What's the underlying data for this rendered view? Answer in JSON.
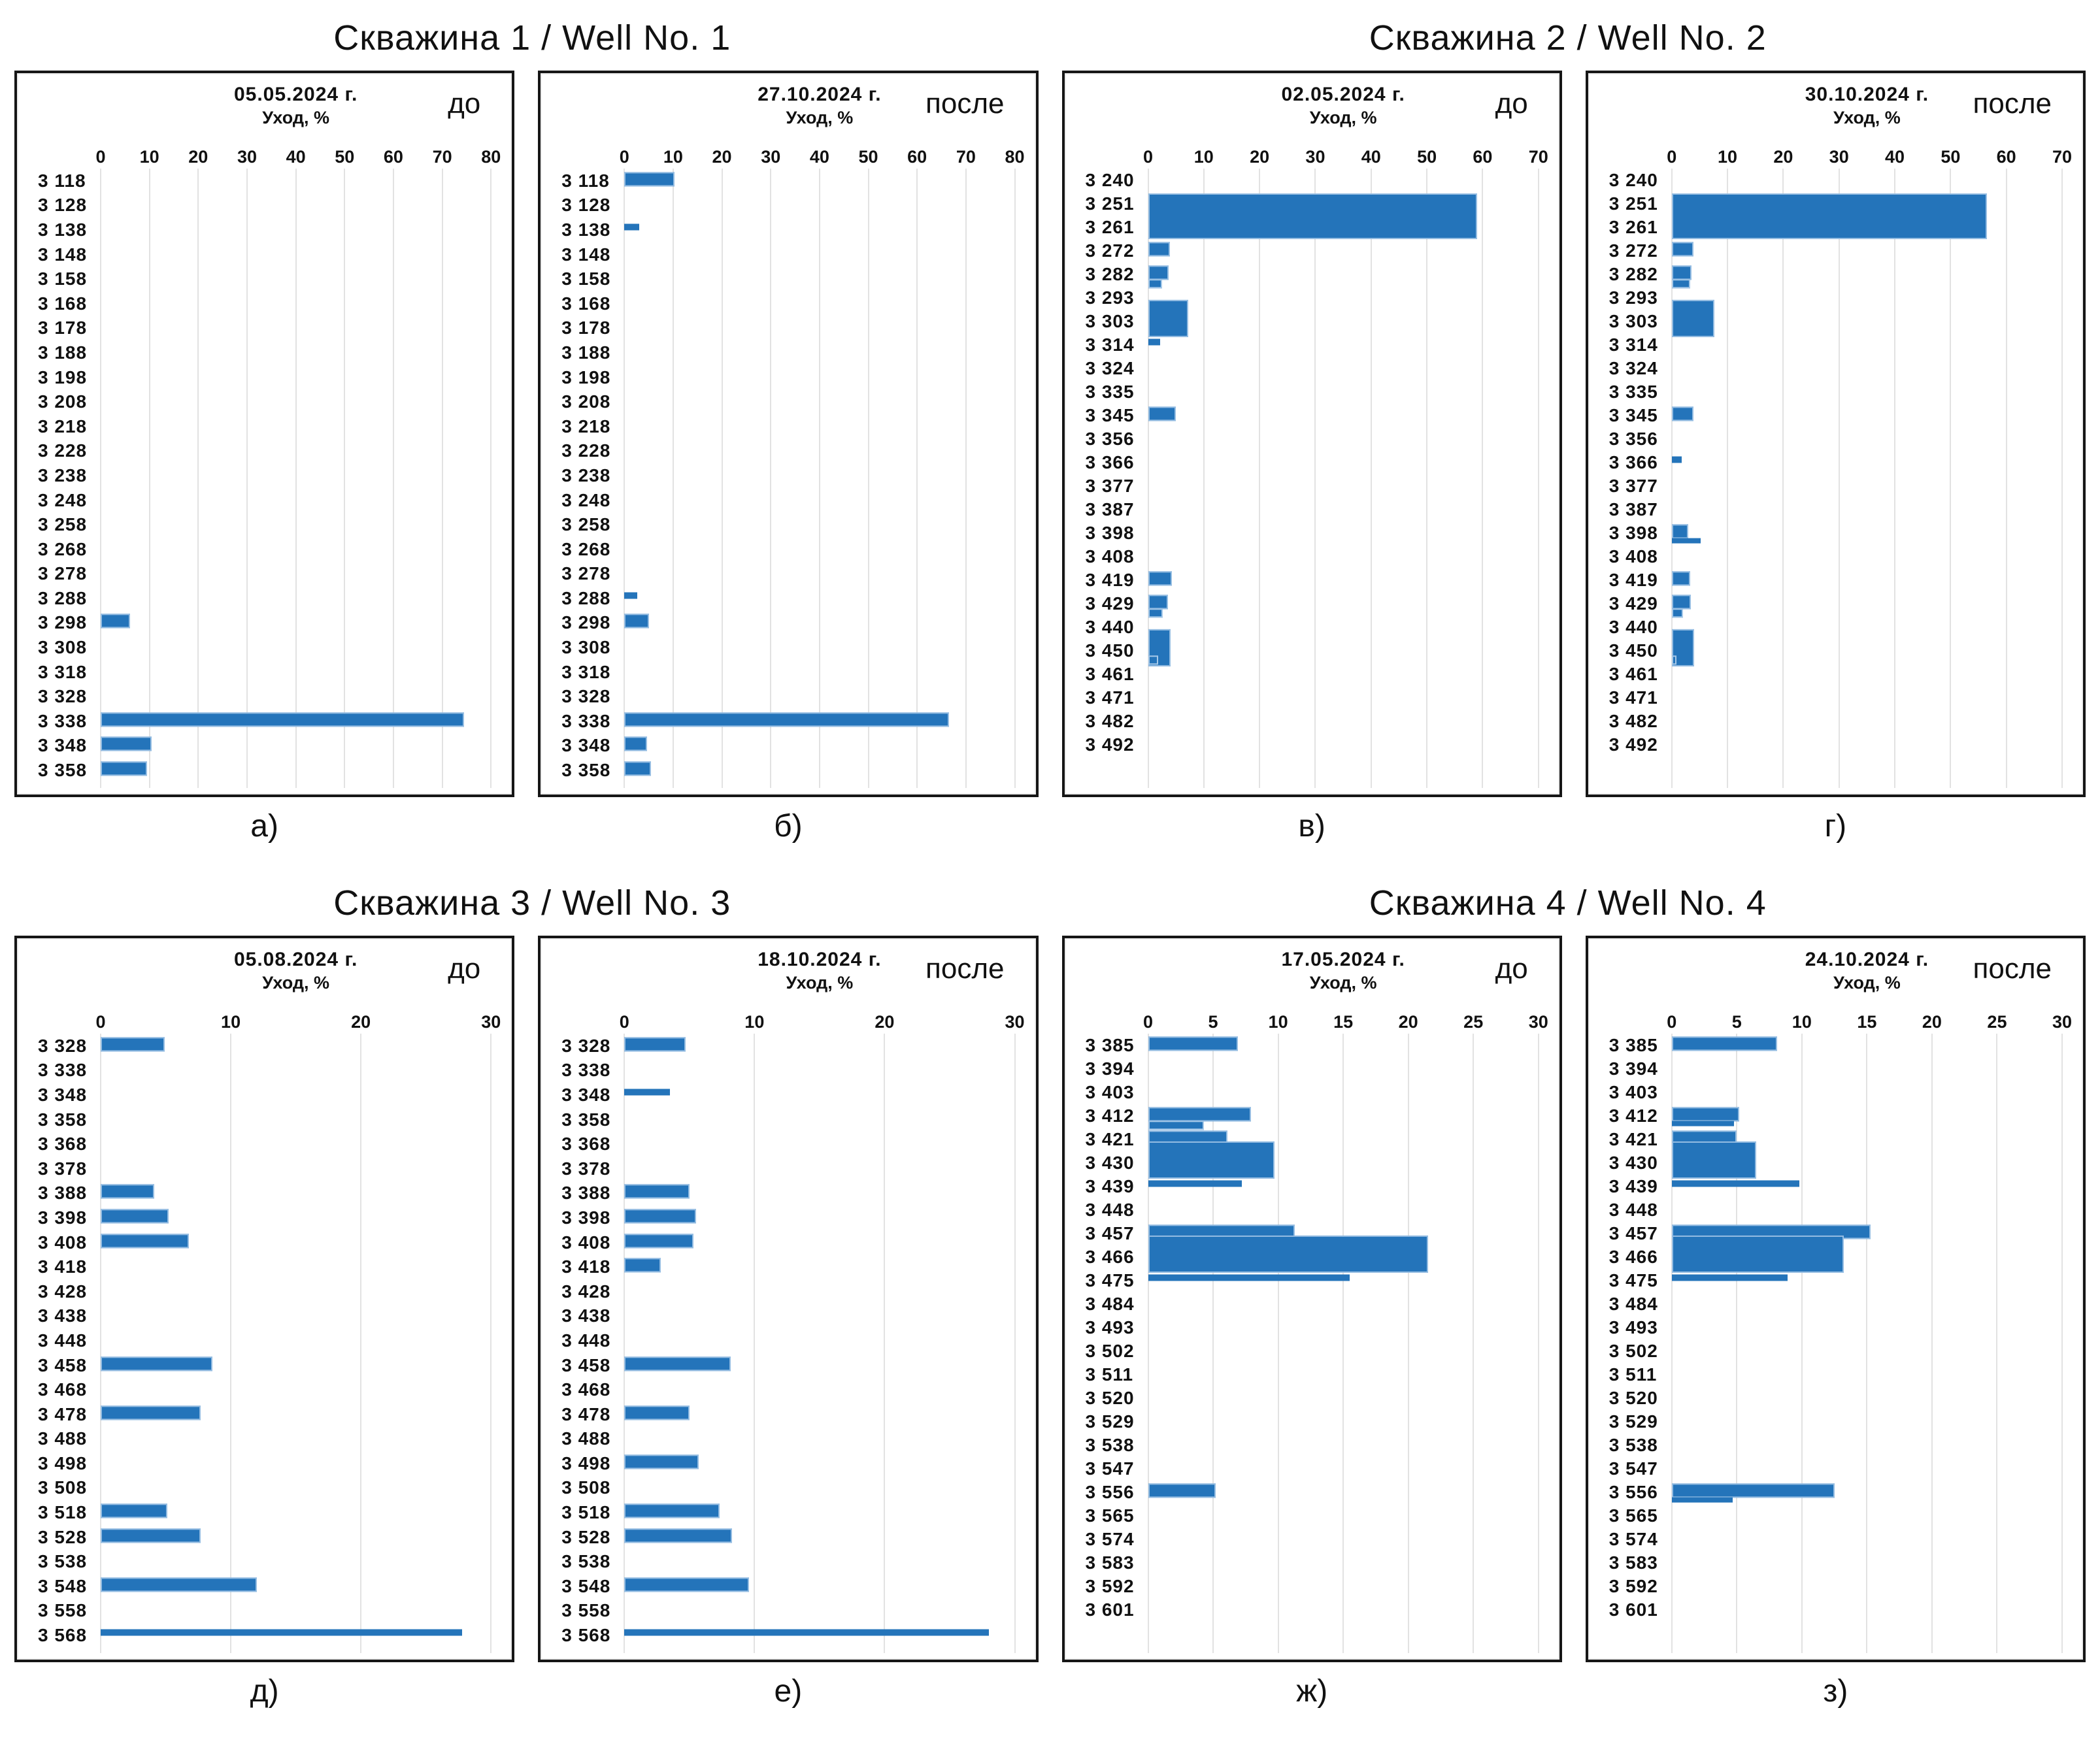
{
  "well_titles": [
    "Скважина 1 / Well No. 1",
    "Скважина 2 / Well No. 2",
    "Скважина 3 / Well No. 3",
    "Скважина 4 / Well No. 4"
  ],
  "colors": {
    "bar": "#2474ba",
    "bar_edge": "#95bde2",
    "gridline": "#e2e2e2",
    "frame": "#161616"
  },
  "chart_data": [
    {
      "id": "a",
      "type": "bar",
      "orientation": "horizontal",
      "caption": "а)",
      "phase": "до",
      "title": "05.05.2024 г.",
      "xlabel": "Уход, %",
      "xlim": [
        0,
        80
      ],
      "xticks": [
        0,
        10,
        20,
        30,
        40,
        50,
        60,
        70,
        80
      ],
      "grid": true,
      "pad_bottom": "small",
      "categories": [
        "3 118",
        "3 128",
        "3 138",
        "3 148",
        "3 158",
        "3 168",
        "3 178",
        "3 188",
        "3 198",
        "3 208",
        "3 218",
        "3 228",
        "3 238",
        "3 248",
        "3 258",
        "3 268",
        "3 278",
        "3 288",
        "3 298",
        "3 308",
        "3 318",
        "3 328",
        "3 338",
        "3 348",
        "3 358"
      ],
      "bars": [
        {
          "at": "3 298",
          "v": 6
        },
        {
          "at": "3 338",
          "v": 74.5
        },
        {
          "at": "3 348",
          "v": 10.5
        },
        {
          "at": "3 358",
          "v": 9.5
        }
      ]
    },
    {
      "id": "b",
      "type": "bar",
      "orientation": "horizontal",
      "caption": "б)",
      "phase": "после",
      "title": "27.10.2024 г.",
      "xlabel": "Уход, %",
      "xlim": [
        0,
        80
      ],
      "xticks": [
        0,
        10,
        20,
        30,
        40,
        50,
        60,
        70,
        80
      ],
      "grid": true,
      "pad_bottom": "small",
      "categories": [
        "3 118",
        "3 128",
        "3 138",
        "3 148",
        "3 158",
        "3 168",
        "3 178",
        "3 188",
        "3 198",
        "3 208",
        "3 218",
        "3 228",
        "3 238",
        "3 248",
        "3 258",
        "3 268",
        "3 278",
        "3 288",
        "3 298",
        "3 308",
        "3 318",
        "3 328",
        "3 338",
        "3 348",
        "3 358"
      ],
      "bars": [
        {
          "at": "3 118",
          "v": 10.3
        },
        {
          "at": "3 138",
          "v": 3,
          "s": "thin"
        },
        {
          "at": "3 288",
          "v": 2.7,
          "s": "thin"
        },
        {
          "at": "3 298",
          "v": 5
        },
        {
          "at": "3 338",
          "v": 66.5
        },
        {
          "at": "3 348",
          "v": 4.7
        },
        {
          "at": "3 358",
          "v": 5.4
        }
      ]
    },
    {
      "id": "v",
      "type": "bar",
      "orientation": "horizontal",
      "caption": "в)",
      "phase": "до",
      "title": "02.05.2024 г.",
      "xlabel": "Уход, %",
      "xlim": [
        0,
        70
      ],
      "xticks": [
        0,
        10,
        20,
        30,
        40,
        50,
        60,
        70
      ],
      "grid": true,
      "pad_bottom": "large",
      "categories": [
        "3 240",
        "3 251",
        "3 261",
        "3 272",
        "3 282",
        "3 293",
        "3 303",
        "3 314",
        "3 324",
        "3 335",
        "3 345",
        "3 356",
        "3 366",
        "3 377",
        "3 387",
        "3 398",
        "3 408",
        "3 419",
        "3 429",
        "3 440",
        "3 450",
        "3 461",
        "3 471",
        "3 482",
        "3 492"
      ],
      "bars": [
        {
          "at": "3 251",
          "v": 59,
          "s": "span2"
        },
        {
          "at": "3 272",
          "v": 3.9
        },
        {
          "at": "3 282",
          "v": 3.7,
          "v2": 2.5
        },
        {
          "at": "3 303",
          "v": 7.2,
          "s": "thick"
        },
        {
          "at": "3 314",
          "v": 2.2,
          "s": "thin"
        },
        {
          "at": "3 345",
          "v": 5
        },
        {
          "at": "3 419",
          "v": 4.3
        },
        {
          "at": "3 429",
          "v": 3.6,
          "v2": 2.6
        },
        {
          "at": "3 450",
          "v": 4,
          "s": "thick",
          "v2": 1.8
        }
      ]
    },
    {
      "id": "g",
      "type": "bar",
      "orientation": "horizontal",
      "caption": "г)",
      "phase": "после",
      "title": "30.10.2024 г.",
      "xlabel": "Уход, %",
      "xlim": [
        0,
        70
      ],
      "xticks": [
        0,
        10,
        20,
        30,
        40,
        50,
        60,
        70
      ],
      "grid": true,
      "pad_bottom": "large",
      "categories": [
        "3 240",
        "3 251",
        "3 261",
        "3 272",
        "3 282",
        "3 293",
        "3 303",
        "3 314",
        "3 324",
        "3 335",
        "3 345",
        "3 356",
        "3 366",
        "3 377",
        "3 387",
        "3 398",
        "3 408",
        "3 419",
        "3 429",
        "3 440",
        "3 450",
        "3 461",
        "3 471",
        "3 482",
        "3 492"
      ],
      "bars": [
        {
          "at": "3 251",
          "v": 56.5,
          "s": "span2"
        },
        {
          "at": "3 272",
          "v": 3.9
        },
        {
          "at": "3 282",
          "v": 3.5,
          "v2": 3.3
        },
        {
          "at": "3 303",
          "v": 7.6,
          "s": "thick"
        },
        {
          "at": "3 345",
          "v": 3.9
        },
        {
          "at": "3 366",
          "v": 1.8,
          "s": "thin"
        },
        {
          "at": "3 398",
          "v": 3,
          "v2": 5.2,
          "v2s": "thin"
        },
        {
          "at": "3 419",
          "v": 3.3
        },
        {
          "at": "3 429",
          "v": 3.4,
          "v2": 2
        },
        {
          "at": "3 450",
          "v": 4,
          "s": "thick",
          "v2": 0.9
        }
      ]
    },
    {
      "id": "d",
      "type": "bar",
      "orientation": "horizontal",
      "caption": "д)",
      "phase": "до",
      "title": "05.08.2024 г.",
      "xlabel": "Уход, %",
      "xlim": [
        0,
        30
      ],
      "xticks": [
        0,
        10,
        20,
        30
      ],
      "grid": true,
      "pad_bottom": "small",
      "categories": [
        "3 328",
        "3 338",
        "3 348",
        "3 358",
        "3 368",
        "3 378",
        "3 388",
        "3 398",
        "3 408",
        "3 418",
        "3 428",
        "3 438",
        "3 448",
        "3 458",
        "3 468",
        "3 478",
        "3 488",
        "3 498",
        "3 508",
        "3 518",
        "3 528",
        "3 538",
        "3 548",
        "3 558",
        "3 568"
      ],
      "bars": [
        {
          "at": "3 328",
          "v": 4.9
        },
        {
          "at": "3 388",
          "v": 4.1
        },
        {
          "at": "3 398",
          "v": 5.2
        },
        {
          "at": "3 408",
          "v": 6.8
        },
        {
          "at": "3 458",
          "v": 8.6
        },
        {
          "at": "3 478",
          "v": 7.7
        },
        {
          "at": "3 518",
          "v": 5.1
        },
        {
          "at": "3 528",
          "v": 7.7
        },
        {
          "at": "3 548",
          "v": 12
        },
        {
          "at": "3 568",
          "v": 27.8,
          "s": "thin"
        }
      ]
    },
    {
      "id": "e",
      "type": "bar",
      "orientation": "horizontal",
      "caption": "е)",
      "phase": "после",
      "title": "18.10.2024 г.",
      "xlabel": "Уход, %",
      "xlim": [
        0,
        30
      ],
      "xticks": [
        0,
        10,
        20,
        30
      ],
      "grid": true,
      "pad_bottom": "small",
      "categories": [
        "3 328",
        "3 338",
        "3 348",
        "3 358",
        "3 368",
        "3 378",
        "3 388",
        "3 398",
        "3 408",
        "3 418",
        "3 428",
        "3 438",
        "3 448",
        "3 458",
        "3 468",
        "3 478",
        "3 488",
        "3 498",
        "3 508",
        "3 518",
        "3 528",
        "3 538",
        "3 548",
        "3 558",
        "3 568"
      ],
      "bars": [
        {
          "at": "3 328",
          "v": 4.7
        },
        {
          "at": "3 348",
          "v": 3.5,
          "s": "thin"
        },
        {
          "at": "3 388",
          "v": 5
        },
        {
          "at": "3 398",
          "v": 5.5
        },
        {
          "at": "3 408",
          "v": 5.3
        },
        {
          "at": "3 418",
          "v": 2.8
        },
        {
          "at": "3 458",
          "v": 8.2
        },
        {
          "at": "3 478",
          "v": 5
        },
        {
          "at": "3 498",
          "v": 5.7
        },
        {
          "at": "3 518",
          "v": 7.3
        },
        {
          "at": "3 528",
          "v": 8.3
        },
        {
          "at": "3 548",
          "v": 9.6
        },
        {
          "at": "3 568",
          "v": 28,
          "s": "thin"
        }
      ]
    },
    {
      "id": "zh",
      "type": "bar",
      "orientation": "horizontal",
      "caption": "ж)",
      "phase": "до",
      "title": "17.05.2024 г.",
      "xlabel": "Уход, %",
      "xlim": [
        0,
        30
      ],
      "xticks": [
        0,
        5,
        10,
        15,
        20,
        25,
        30
      ],
      "grid": true,
      "pad_bottom": "large",
      "categories": [
        "3 385",
        "3 394",
        "3 403",
        "3 412",
        "3 421",
        "3 430",
        "3 439",
        "3 448",
        "3 457",
        "3 466",
        "3 475",
        "3 484",
        "3 493",
        "3 502",
        "3 511",
        "3 520",
        "3 529",
        "3 538",
        "3 547",
        "3 556",
        "3 565",
        "3 574",
        "3 583",
        "3 592",
        "3 601"
      ],
      "bars": [
        {
          "at": "3 385",
          "v": 6.9
        },
        {
          "at": "3 412",
          "v": 7.9,
          "v2": 4.3
        },
        {
          "at": "3 421",
          "v": 6.1,
          "v2": 5.4
        },
        {
          "at": "3 430",
          "v": 9.7,
          "s": "thick"
        },
        {
          "at": "3 439",
          "v": 7.2,
          "s": "thin"
        },
        {
          "at": "3 457",
          "v": 11.3
        },
        {
          "at": "3 466",
          "v": 21.5,
          "s": "thick"
        },
        {
          "at": "3 475",
          "v": 15.5,
          "s": "thin"
        },
        {
          "at": "3 556",
          "v": 5.2
        }
      ]
    },
    {
      "id": "z",
      "type": "bar",
      "orientation": "horizontal",
      "caption": "з)",
      "phase": "после",
      "title": "24.10.2024 г.",
      "xlabel": "Уход, %",
      "xlim": [
        0,
        30
      ],
      "xticks": [
        0,
        5,
        10,
        15,
        20,
        25,
        30
      ],
      "grid": true,
      "pad_bottom": "large",
      "categories": [
        "3 385",
        "3 394",
        "3 403",
        "3 412",
        "3 421",
        "3 430",
        "3 439",
        "3 448",
        "3 457",
        "3 466",
        "3 475",
        "3 484",
        "3 493",
        "3 502",
        "3 511",
        "3 520",
        "3 529",
        "3 538",
        "3 547",
        "3 556",
        "3 565",
        "3 574",
        "3 583",
        "3 592",
        "3 601"
      ],
      "bars": [
        {
          "at": "3 385",
          "v": 8.1
        },
        {
          "at": "3 412",
          "v": 5.2,
          "v2": 4.8,
          "v2s": "thin"
        },
        {
          "at": "3 421",
          "v": 5,
          "v2": 5.6
        },
        {
          "at": "3 430",
          "v": 6.5,
          "s": "thick"
        },
        {
          "at": "3 439",
          "v": 9.8,
          "s": "thin"
        },
        {
          "at": "3 457",
          "v": 15.3
        },
        {
          "at": "3 466",
          "v": 13.2,
          "s": "thick"
        },
        {
          "at": "3 475",
          "v": 8.9,
          "s": "thin"
        },
        {
          "at": "3 556",
          "v": 12.5,
          "v2": 4.7,
          "v2s": "thin"
        }
      ]
    }
  ]
}
